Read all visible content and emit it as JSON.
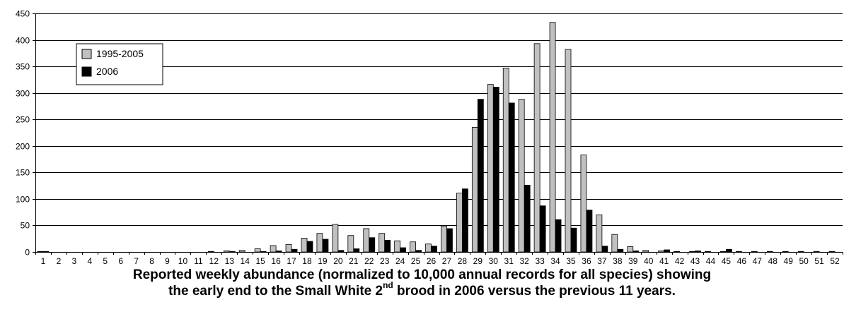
{
  "chart_data": {
    "type": "bar",
    "title": "",
    "xlabel": "",
    "ylabel": "",
    "ylim": [
      0,
      450
    ],
    "yticks": [
      "0",
      "50",
      "100",
      "150",
      "200",
      "250",
      "300",
      "350",
      "400",
      "450"
    ],
    "categories": [
      "1",
      "2",
      "3",
      "4",
      "5",
      "6",
      "7",
      "8",
      "9",
      "10",
      "11",
      "12",
      "13",
      "14",
      "15",
      "16",
      "17",
      "18",
      "19",
      "20",
      "21",
      "22",
      "23",
      "24",
      "25",
      "26",
      "27",
      "28",
      "29",
      "30",
      "31",
      "32",
      "33",
      "34",
      "35",
      "36",
      "37",
      "38",
      "39",
      "40",
      "41",
      "42",
      "43",
      "44",
      "45",
      "46",
      "47",
      "48",
      "49",
      "50",
      "51",
      "52"
    ],
    "series": [
      {
        "name": "1995-2005",
        "color": "#c0c0c0",
        "values": [
          1,
          0,
          0,
          0,
          0,
          0,
          0,
          0,
          0,
          0,
          0,
          1,
          2,
          3,
          6,
          12,
          14,
          26,
          35,
          52,
          31,
          44,
          35,
          21,
          19,
          15,
          49,
          111,
          235,
          316,
          347,
          288,
          393,
          433,
          382,
          183,
          70,
          33,
          10,
          3,
          2,
          1,
          1,
          1,
          1,
          1,
          1,
          1,
          1,
          1,
          1,
          1
        ]
      },
      {
        "name": "2006",
        "color": "#000000",
        "values": [
          1,
          0,
          0,
          0,
          0,
          0,
          0,
          0,
          0,
          0,
          0,
          0,
          1,
          0,
          1,
          2,
          5,
          20,
          24,
          3,
          6,
          27,
          22,
          8,
          3,
          11,
          44,
          119,
          288,
          311,
          281,
          126,
          87,
          61,
          45,
          79,
          11,
          5,
          2,
          0,
          4,
          0,
          2,
          0,
          5,
          0,
          0,
          0,
          0,
          0,
          0,
          0
        ]
      }
    ],
    "grid": true,
    "legend_position": "top-left"
  },
  "caption": {
    "line1": "Reported weekly abundance (normalized to 10,000 annual records for all species) showing",
    "line2_pre": "the early end to the Small White 2",
    "line2_sup": "nd",
    "line2_post": " brood in 2006 versus the previous 11 years."
  }
}
